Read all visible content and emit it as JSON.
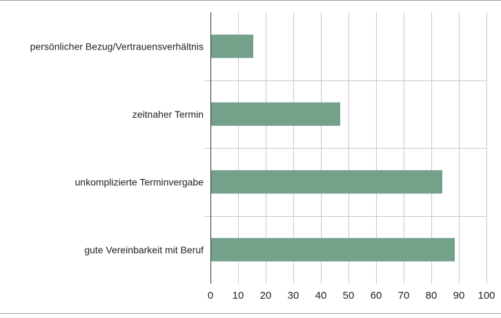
{
  "chart_data": {
    "type": "bar",
    "orientation": "horizontal",
    "categories": [
      "persönlicher Bezug/Vertrauensverhältnis",
      "zeitnaher Termin",
      "unkomplizierte Terminvergabe",
      "gute Vereinbarkeit mit Beruf"
    ],
    "values": [
      15.5,
      47,
      84,
      88.5
    ],
    "xlim": [
      0,
      100
    ],
    "xticks": [
      0,
      10,
      20,
      30,
      40,
      50,
      60,
      70,
      80,
      90,
      100
    ],
    "grid": "vertical",
    "title": "",
    "xlabel": "",
    "ylabel": "",
    "bar_color": "#73a18a",
    "grid_color": "#c8c8c8",
    "axis_color": "#333333",
    "frame_color": "#9a9a9a"
  }
}
